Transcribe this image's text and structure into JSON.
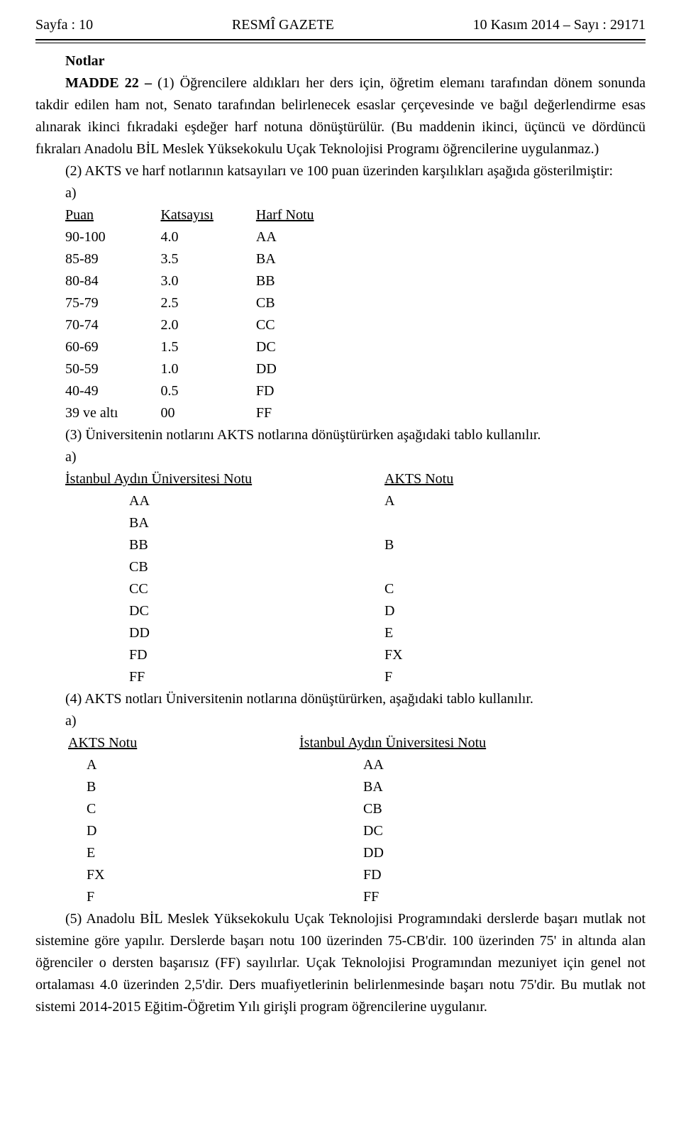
{
  "header": {
    "left": "Sayfa : 10",
    "center": "RESMÎ GAZETE",
    "right": "10 Kasım 2014 – Sayı : 29171"
  },
  "notlar_title": "Notlar",
  "madde22_lead": "MADDE 22 – ",
  "madde22_body": "(1) Öğrencilere aldıkları her ders için, öğretim elemanı tarafından dönem sonunda takdir edilen ham not, Senato tarafından belirlenecek esaslar çerçevesinde ve bağıl değerlendirme esas alınarak ikinci fıkradaki eşdeğer harf notuna dönüştürülür. (Bu maddenin ikinci, üçüncü ve dördüncü fıkraları Anadolu BİL Meslek Yüksekokulu Uçak Teknolojisi Programı öğrencilerine uygulanmaz.)",
  "p2_intro": "(2) AKTS ve harf notlarının katsayıları ve 100 puan üzerinden karşılıkları aşağıda gösterilmiştir:",
  "a_label_1": "a)",
  "table1": {
    "headers": {
      "puan": "Puan",
      "katsayi": "Katsayısı",
      "harf": "Harf Notu"
    },
    "rows": [
      {
        "puan": "90-100",
        "katsayi": "4.0",
        "harf": "AA"
      },
      {
        "puan": "85-89",
        "katsayi": "3.5",
        "harf": "BA"
      },
      {
        "puan": "80-84",
        "katsayi": "3.0",
        "harf": "BB"
      },
      {
        "puan": "75-79",
        "katsayi": "2.5",
        "harf": "CB"
      },
      {
        "puan": "70-74",
        "katsayi": "2.0",
        "harf": "CC"
      },
      {
        "puan": "60-69",
        "katsayi": "1.5",
        "harf": "DC"
      },
      {
        "puan": "50-59",
        "katsayi": "1.0",
        "harf": "DD"
      },
      {
        "puan": "40-49",
        "katsayi": "0.5",
        "harf": "FD"
      },
      {
        "puan": "39 ve altı",
        "katsayi": "00",
        "harf": "FF"
      }
    ]
  },
  "p3": "(3) Üniversitenin notlarını AKTS notlarına dönüştürürken aşağıdaki tablo kullanılır.",
  "a_label_2": "a)",
  "table2": {
    "h1": "İstanbul Aydın Üniversitesi Notu",
    "h2": "AKTS Notu",
    "rows": [
      {
        "c1": "AA",
        "c2": "A"
      },
      {
        "c1": "BA",
        "c2": ""
      },
      {
        "c1": "BB",
        "c2": "B"
      },
      {
        "c1": "CB",
        "c2": ""
      },
      {
        "c1": "CC",
        "c2": "C"
      },
      {
        "c1": "DC",
        "c2": "D"
      },
      {
        "c1": "DD",
        "c2": "E"
      },
      {
        "c1": "FD",
        "c2": "FX"
      },
      {
        "c1": "FF",
        "c2": "F"
      }
    ]
  },
  "p4": "(4) AKTS notları Üniversitenin notlarına dönüştürürken, aşağıdaki tablo kullanılır.",
  "a_label_3": "a)",
  "table3": {
    "h1": "AKTS Notu",
    "h2": "İstanbul Aydın Üniversitesi Notu",
    "rows": [
      {
        "c1": "A",
        "c2": "AA"
      },
      {
        "c1": "B",
        "c2": "BA"
      },
      {
        "c1": "C",
        "c2": "CB"
      },
      {
        "c1": "D",
        "c2": "DC"
      },
      {
        "c1": "E",
        "c2": "DD"
      },
      {
        "c1": "FX",
        "c2": "FD"
      },
      {
        "c1": "F",
        "c2": "FF"
      }
    ]
  },
  "p5": "(5) Anadolu BİL Meslek Yüksekokulu Uçak Teknolojisi Programındaki derslerde başarı mutlak not sistemine göre yapılır. Derslerde başarı notu 100 üzerinden 75-CB'dir. 100 üzerinden 75' in altında alan öğrenciler o dersten başarısız (FF) sayılırlar. Uçak Teknolojisi Programından mezuniyet için genel not ortalaması 4.0 üzerinden 2,5'dir. Ders muafiyetlerinin belirlenmesinde başarı notu 75'dir. Bu mutlak not sistemi 2014-2015 Eğitim-Öğretim Yılı girişli program öğrencilerine uygulanır."
}
